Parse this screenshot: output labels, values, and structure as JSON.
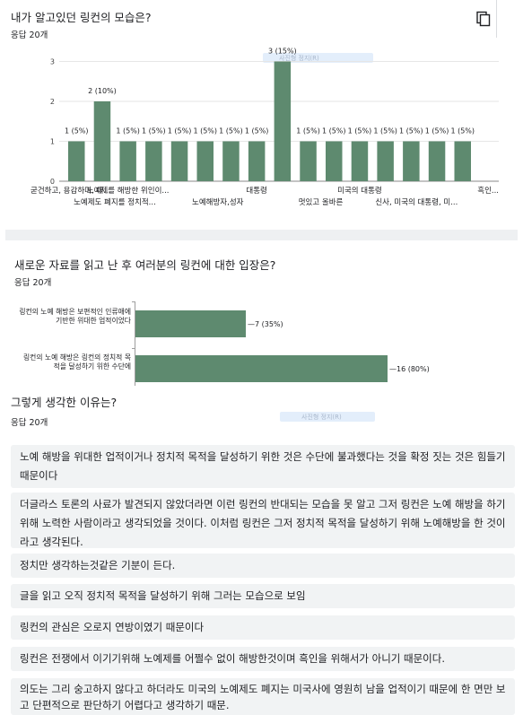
{
  "q1": {
    "title": "내가 알고있던 링컨의 모습은?",
    "responses": "응답 20개",
    "tooltip": "사진형 정지(R)",
    "chart_data": {
      "type": "bar",
      "y_ticks": [
        "0",
        "1",
        "2",
        "3"
      ],
      "ylim": [
        0,
        3
      ],
      "values": [
        1,
        2,
        1,
        1,
        1,
        1,
        1,
        1,
        3,
        1,
        1,
        1,
        1,
        1,
        1,
        1
      ],
      "bar_labels": [
        "1 (5%)",
        "2 (10%)",
        "1 (5%)",
        "1 (5%)",
        "1 (5%)",
        "1 (5%)",
        "1 (5%)",
        "1 (5%)",
        "3 (15%)",
        "1 (5%)",
        "1 (5%)",
        "1 (5%)",
        "1 (5%)",
        "1 (5%)",
        "1 (5%)",
        "1 (5%)"
      ],
      "xtick_row1": [
        "굳건하고, 용감하며, 대...",
        "노예제를 해방한 위인이...",
        "대통령",
        "미국의 대통령",
        "흑인..."
      ],
      "xtick_row2": [
        "노예제도 폐지를 정치적...",
        "노예해방자,성자",
        "멋있고 올바른",
        "신사, 미국의 대통령, 미..."
      ],
      "bar_color": "#5e8a6f"
    }
  },
  "q2": {
    "title": "새로운 자료를 읽고 난 후 여러분의 링컨에 대한 입장은?",
    "responses": "응답 20개",
    "chart_data": {
      "type": "bar",
      "orientation": "horizontal",
      "categories": [
        "링컨의 노예 해방은 보편적인 인류애에 기반한 위대한 업적이었다",
        "링컨의 노예 해방은 링컨의 정치적 목적을 달성하기 위한 수단에"
      ],
      "values": [
        7,
        16
      ],
      "value_labels": [
        "7 (35%)",
        "16 (80%)"
      ],
      "bar_color": "#5e8a6f"
    }
  },
  "q3": {
    "title": "그렇게 생각한 이유는?",
    "responses": "응답 20개",
    "tooltip": "사진형 정지(R)",
    "answers": [
      "노예 해방을 위대한 업적이거나 정치적 목적을 달성하기 위한 것은 수단에 불과했다는 것을 확정 짓는 것은 힘들기 때문이다",
      "더글라스 토론의 사료가 발견되지 않았더라면 이런 링컨의 반대되는 모습을 못 알고 그저 링컨은 노예 해방을 하기위해 노력한 사람이라고 생각되었을 것이다. 이처럼 링컨은 그저 정치적 목적을 달성하기 위해 노예해방을 한 것이라고 생각된다.",
      "정치만 생각하는것같은 기분이 든다.",
      "글을 읽고 오직 정치적 목적을 달성하기 위해 그러는 모습으로 보임",
      "링컨의 관심은 오로지 연방이였기 때문이다",
      "링컨은 전쟁에서 이기기위해 노예제를 어쩔수 없이 해방한것이며 흑인을 위해서가 아니기 때문이다.",
      "의도는 그리 숭고하지 않다고 하더라도 미국의 노예제도 폐지는 미국사에 영원히 남을 업적이기 때문에 한 면만 보고 단편적으로 판단하기 어렵다고 생각하기 때문."
    ]
  }
}
